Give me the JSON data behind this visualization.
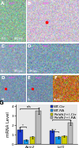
{
  "title": "G",
  "ylabel": "mRNA Level",
  "groups": [
    "Axin2",
    "Lef1"
  ],
  "conditions": [
    "WT-Ctr",
    "WT-RA",
    "Raldh2+/-Ctr",
    "Raldh2+/-RA"
  ],
  "colors": [
    "#1a3acc",
    "#1199ee",
    "#cccc00",
    "#b8b8b8"
  ],
  "axin2_values": [
    1.55,
    0.45,
    0.75,
    3.5
  ],
  "axin2_errors": [
    0.22,
    0.08,
    0.12,
    0.32
  ],
  "lef1_values": [
    1.45,
    0.75,
    0.85,
    2.3
  ],
  "lef1_errors": [
    0.18,
    0.12,
    0.1,
    0.25
  ],
  "ylim": [
    0,
    4.2
  ],
  "bar_width": 0.17,
  "panel_label_fontsize": 5,
  "legend_fontsize": 3.2,
  "axis_fontsize": 3.8,
  "tick_fontsize": 3.2,
  "panel_A_color": [
    0.55,
    0.72,
    0.6
  ],
  "panel_B_color": [
    0.8,
    0.75,
    0.82
  ],
  "panel_C_color": [
    0.55,
    0.65,
    0.72
  ],
  "panel_D_color": [
    0.5,
    0.62,
    0.7
  ],
  "panel_E_color": [
    0.48,
    0.6,
    0.68
  ],
  "panel_F_color": [
    0.72,
    0.45,
    0.18
  ],
  "panel_D2_color": [
    0.48,
    0.58,
    0.68
  ],
  "panel_E2_color": [
    0.46,
    0.56,
    0.66
  ],
  "bg_color": "#e8e8e8",
  "chart_bg": "#e8e8e8"
}
